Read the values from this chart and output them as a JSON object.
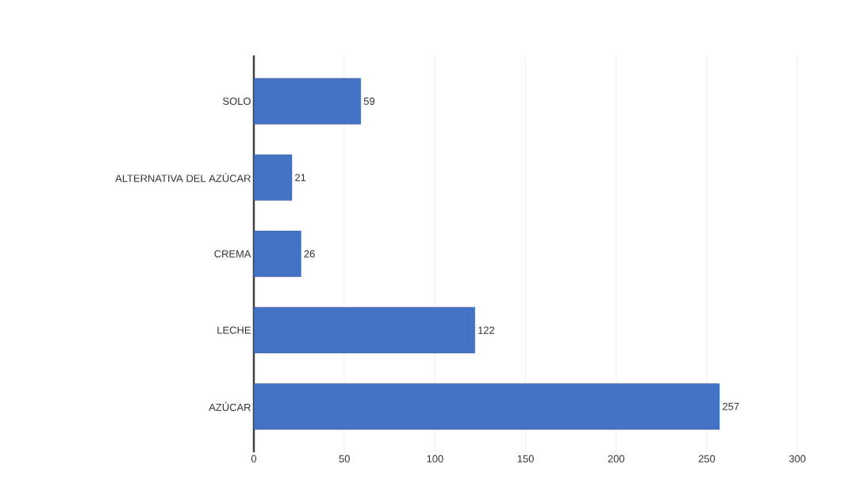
{
  "chart_data": {
    "type": "bar",
    "orientation": "horizontal",
    "categories": [
      "SOLO",
      "ALTERNATIVA DEL AZÚCAR",
      "CREMA",
      "LECHE",
      "AZÚCAR"
    ],
    "values": [
      59,
      21,
      26,
      122,
      257
    ],
    "color": "#4472c4",
    "xlim": [
      0,
      300
    ],
    "xticks": [
      0,
      50,
      100,
      150,
      200,
      250,
      300
    ],
    "grid": "x",
    "data_labels": true
  }
}
